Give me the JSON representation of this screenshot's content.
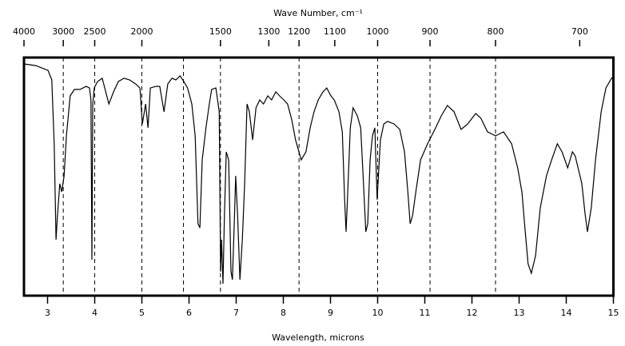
{
  "chart_data": {
    "type": "line",
    "title": "Wave Number, cm⁻¹",
    "x_label": "Wavelength, microns",
    "color": "#000000",
    "x": [
      2.5,
      2.75,
      3.01,
      3.09,
      3.14,
      3.18,
      3.21,
      3.26,
      3.3,
      3.35,
      3.4,
      3.48,
      3.57,
      3.69,
      3.82,
      3.89,
      3.92,
      3.94,
      3.96,
      3.99,
      4.06,
      4.16,
      4.3,
      4.4,
      4.5,
      4.62,
      4.74,
      4.87,
      4.96,
      5.01,
      5.08,
      5.13,
      5.18,
      5.3,
      5.38,
      5.47,
      5.55,
      5.64,
      5.72,
      5.81,
      5.89,
      5.97,
      6.06,
      6.13,
      6.19,
      6.23,
      6.28,
      6.36,
      6.43,
      6.48,
      6.57,
      6.64,
      6.67,
      6.69,
      6.72,
      6.75,
      6.79,
      6.84,
      6.89,
      6.92,
      6.96,
      6.99,
      7.03,
      7.08,
      7.13,
      7.18,
      7.23,
      7.28,
      7.35,
      7.42,
      7.5,
      7.58,
      7.67,
      7.75,
      7.84,
      7.92,
      8.01,
      8.09,
      8.18,
      8.26,
      8.38,
      8.48,
      8.57,
      8.65,
      8.74,
      8.84,
      8.92,
      9.01,
      9.08,
      9.18,
      9.25,
      9.3,
      9.33,
      9.36,
      9.42,
      9.48,
      9.57,
      9.64,
      9.7,
      9.75,
      9.79,
      9.84,
      9.89,
      9.94,
      9.99,
      10.03,
      10.06,
      10.13,
      10.21,
      10.35,
      10.47,
      10.57,
      10.64,
      10.69,
      10.74,
      10.81,
      10.91,
      11.06,
      11.23,
      11.35,
      11.48,
      11.62,
      11.77,
      11.91,
      12.08,
      12.19,
      12.33,
      12.5,
      12.67,
      12.84,
      12.97,
      13.06,
      13.13,
      13.19,
      13.26,
      13.35,
      13.45,
      13.58,
      13.69,
      13.81,
      13.91,
      14.03,
      14.13,
      14.19,
      14.33,
      14.4,
      14.45,
      14.53,
      14.62,
      14.74,
      14.84,
      14.94,
      15.0
    ],
    "values": [
      97.3,
      96.6,
      94.6,
      90.6,
      63.8,
      23.5,
      33.6,
      47.0,
      43.6,
      50.3,
      67.1,
      83.9,
      86.6,
      86.6,
      87.9,
      87.2,
      82.2,
      15.1,
      80.5,
      87.2,
      89.9,
      91.3,
      80.5,
      85.6,
      89.9,
      91.3,
      90.6,
      88.9,
      87.2,
      72.1,
      80.5,
      70.5,
      87.2,
      87.9,
      87.9,
      77.2,
      88.9,
      91.3,
      90.6,
      92.3,
      89.9,
      87.2,
      80.5,
      67.1,
      30.2,
      28.5,
      57.0,
      70.5,
      80.5,
      86.6,
      87.2,
      77.2,
      10.1,
      23.5,
      5.0,
      33.6,
      60.4,
      57.0,
      10.1,
      6.7,
      30.2,
      50.3,
      33.6,
      6.7,
      23.5,
      47.0,
      80.5,
      77.2,
      65.4,
      78.9,
      82.2,
      80.5,
      83.9,
      82.2,
      85.6,
      83.9,
      82.2,
      80.5,
      73.8,
      65.4,
      57.0,
      60.4,
      70.5,
      77.2,
      82.2,
      85.6,
      87.2,
      83.9,
      82.2,
      77.2,
      68.8,
      40.3,
      26.8,
      40.3,
      70.5,
      78.9,
      75.5,
      70.5,
      47.0,
      26.8,
      30.2,
      57.0,
      67.1,
      70.5,
      40.3,
      55.4,
      65.4,
      72.1,
      73.2,
      72.1,
      69.8,
      60.4,
      43.6,
      30.2,
      33.6,
      43.6,
      57.0,
      63.8,
      70.5,
      75.5,
      79.9,
      77.2,
      69.8,
      72.1,
      76.5,
      74.5,
      68.8,
      67.1,
      68.8,
      63.8,
      53.7,
      43.6,
      26.8,
      13.4,
      9.4,
      16.8,
      36.9,
      50.3,
      57.0,
      63.8,
      60.4,
      53.7,
      60.4,
      58.7,
      47.0,
      34.2,
      26.8,
      36.9,
      57.0,
      77.2,
      87.2,
      90.6,
      92.3
    ],
    "xlim": [
      2.5,
      15
    ],
    "xticks": [
      3,
      4,
      5,
      6,
      7,
      8,
      9,
      10,
      11,
      12,
      13,
      14,
      15
    ],
    "ylim": [
      0,
      100
    ],
    "x2ticks": [
      4000,
      3000,
      2500,
      2000,
      1500,
      1300,
      1200,
      1100,
      1000,
      900,
      800,
      700
    ],
    "dashed_lines": [
      3000,
      2500,
      2000,
      1700,
      1500,
      1200,
      1000,
      900,
      800
    ]
  }
}
